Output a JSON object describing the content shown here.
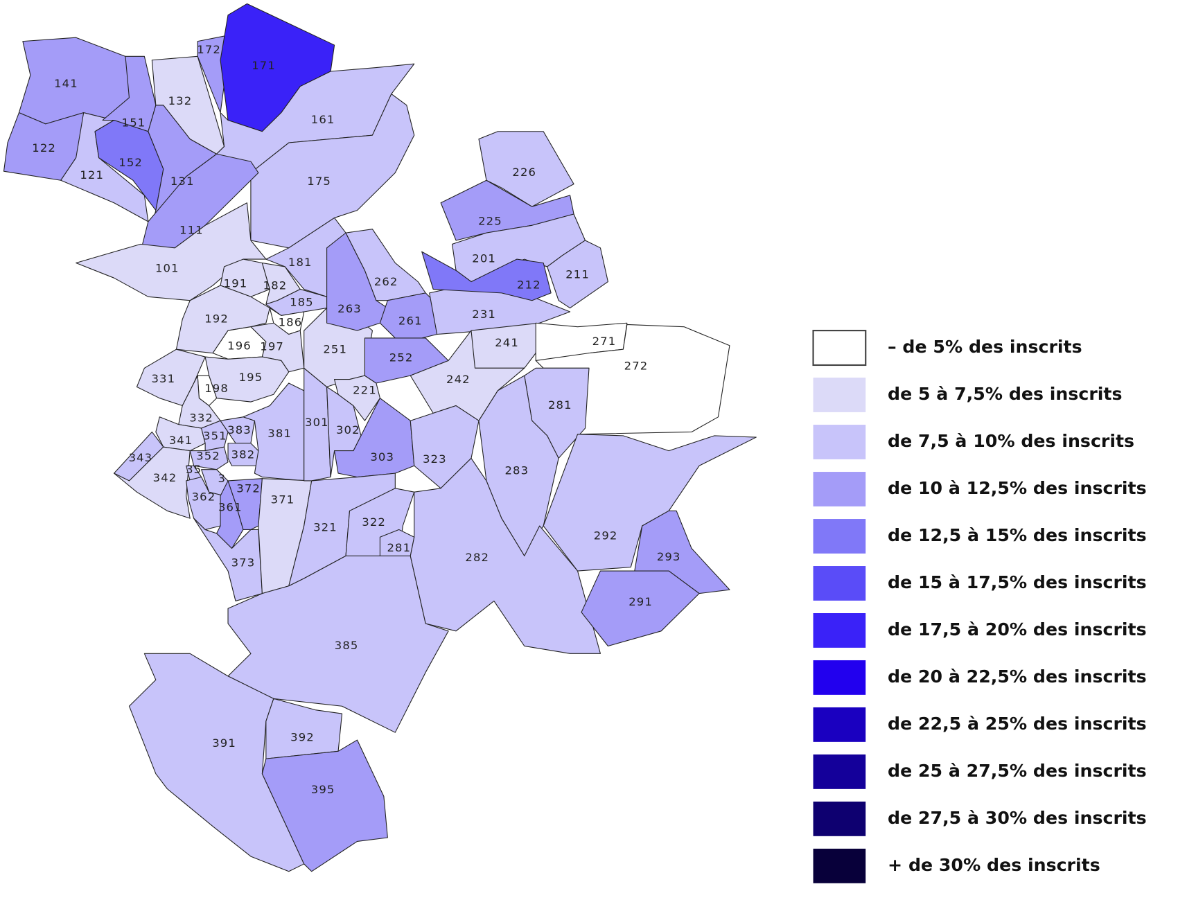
{
  "map": {
    "regions": [
      {
        "label": "141",
        "class": 3
      },
      {
        "label": "122",
        "class": 3
      },
      {
        "label": "121",
        "class": 2
      },
      {
        "label": "151",
        "class": 3
      },
      {
        "label": "152",
        "class": 4
      },
      {
        "label": "131",
        "class": 3
      },
      {
        "label": "132",
        "class": 1
      },
      {
        "label": "172",
        "class": 3
      },
      {
        "label": "171",
        "class": 6
      },
      {
        "label": "161",
        "class": 2
      },
      {
        "label": "175",
        "class": 2
      },
      {
        "label": "111",
        "class": 3
      },
      {
        "label": "101",
        "class": 1
      },
      {
        "label": "181",
        "class": 2
      },
      {
        "label": "191",
        "class": 1
      },
      {
        "label": "182",
        "class": 1
      },
      {
        "label": "185",
        "class": 2
      },
      {
        "label": "186",
        "class": 0
      },
      {
        "label": "192",
        "class": 1
      },
      {
        "label": "196",
        "class": 0
      },
      {
        "label": "197",
        "class": 1
      },
      {
        "label": "195",
        "class": 1
      },
      {
        "label": "198",
        "class": 0
      },
      {
        "label": "331",
        "class": 1
      },
      {
        "label": "332",
        "class": 1
      },
      {
        "label": "341",
        "class": 1
      },
      {
        "label": "343",
        "class": 2
      },
      {
        "label": "342",
        "class": 1
      },
      {
        "label": "351",
        "class": 2
      },
      {
        "label": "352",
        "class": 2
      },
      {
        "label": "35",
        "class": 2
      },
      {
        "label": "3",
        "class": 2
      },
      {
        "label": "383",
        "class": 2
      },
      {
        "label": "382",
        "class": 2
      },
      {
        "label": "381",
        "class": 2
      },
      {
        "label": "362",
        "class": 2
      },
      {
        "label": "361",
        "class": 3
      },
      {
        "label": "372",
        "class": 3
      },
      {
        "label": "373",
        "class": 2
      },
      {
        "label": "371",
        "class": 1
      },
      {
        "label": "301",
        "class": 2
      },
      {
        "label": "302",
        "class": 2
      },
      {
        "label": "303",
        "class": 3
      },
      {
        "label": "321",
        "class": 2
      },
      {
        "label": "322",
        "class": 2
      },
      {
        "label": "281",
        "class": 2
      },
      {
        "label": "385",
        "class": 2
      },
      {
        "label": "391",
        "class": 2
      },
      {
        "label": "392",
        "class": 2
      },
      {
        "label": "395",
        "class": 3
      },
      {
        "label": "251",
        "class": 1
      },
      {
        "label": "221",
        "class": 1
      },
      {
        "label": "252",
        "class": 3
      },
      {
        "label": "263",
        "class": 3
      },
      {
        "label": "262",
        "class": 2
      },
      {
        "label": "261",
        "class": 3
      },
      {
        "label": "231",
        "class": 2
      },
      {
        "label": "225",
        "class": 3
      },
      {
        "label": "226",
        "class": 2
      },
      {
        "label": "201",
        "class": 2
      },
      {
        "label": "212",
        "class": 4
      },
      {
        "label": "211",
        "class": 2
      },
      {
        "label": "241",
        "class": 1
      },
      {
        "label": "242",
        "class": 1
      },
      {
        "label": "271",
        "class": 0
      },
      {
        "label": "272",
        "class": 0
      },
      {
        "label": "281",
        "class": 2
      },
      {
        "label": "283",
        "class": 2
      },
      {
        "label": "323",
        "class": 2
      },
      {
        "label": "282",
        "class": 2
      },
      {
        "label": "292",
        "class": 2
      },
      {
        "label": "293",
        "class": 3
      },
      {
        "label": "291",
        "class": 3
      }
    ],
    "legend": {
      "items": [
        {
          "label": "– de 5% des inscrits",
          "color": "#ffffff"
        },
        {
          "label": "de 5 à 7,5% des inscrits",
          "color": "#dcdaf8"
        },
        {
          "label": "de 7,5 à 10% des inscrits",
          "color": "#c8c4fa"
        },
        {
          "label": "de 10 à 12,5% des inscrits",
          "color": "#a49cf8"
        },
        {
          "label": "de 12,5 à 15% des inscrits",
          "color": "#8078f8"
        },
        {
          "label": "de 15 à 17,5% des inscrits",
          "color": "#5a4cf8"
        },
        {
          "label": "de 17,5 à 20% des inscrits",
          "color": "#3a22f8"
        },
        {
          "label": "de 20 à 22,5% des inscrits",
          "color": "#2200ee"
        },
        {
          "label": "de 22,5 à 25% des inscrits",
          "color": "#1a00c0"
        },
        {
          "label": "de 25 à 27,5% des inscrits",
          "color": "#14009a"
        },
        {
          "label": "de 27,5 à 30% des inscrits",
          "color": "#0e0070"
        },
        {
          "label": "+ de 30% des inscrits",
          "color": "#08003a"
        }
      ]
    }
  }
}
